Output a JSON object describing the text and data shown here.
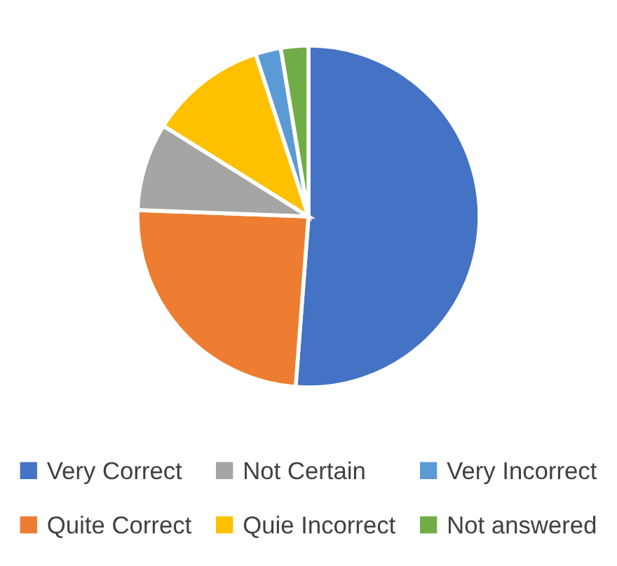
{
  "chart_data": {
    "type": "pie",
    "categories": [
      "Very Correct",
      "Quite Correct",
      "Not Certain",
      "Quie Incorrect",
      "Very Incorrect",
      "Not answered"
    ],
    "values": [
      51.2,
      24.4,
      8.3,
      11.1,
      2.4,
      2.6
    ],
    "colors": [
      "#4472c4",
      "#ed7d31",
      "#a5a5a5",
      "#ffc000",
      "#5b9bd5",
      "#70ad47"
    ],
    "legend": "bottom"
  }
}
